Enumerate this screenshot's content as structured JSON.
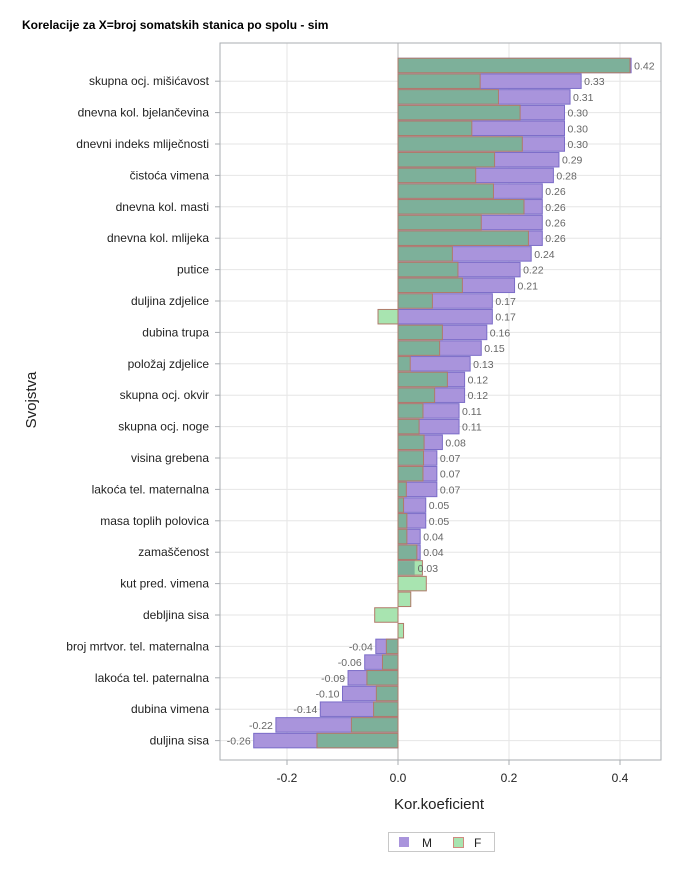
{
  "chart_data": {
    "type": "bar",
    "orientation": "horizontal",
    "title": "Korelacije za X=broj somatskih stanica po spolu - sim",
    "xlabel": "Kor.koeficient",
    "ylabel": "Svojstva",
    "xlim": [
      -0.32,
      0.47
    ],
    "xticks": [
      "-0.2",
      "0.0",
      "0.2",
      "0.4"
    ],
    "xtick_values": [
      -0.2,
      0.0,
      0.2,
      0.4
    ],
    "grid": true,
    "legend_position": "bottom",
    "categories": [
      "",
      "skupna ocj. mišićavost",
      "",
      "dnevna kol. bjelančevina",
      "",
      "dnevni indeks mliječnosti",
      "",
      "čistoća vimena",
      "",
      "dnevna kol. masti",
      "",
      "dnevna kol. mlijeka",
      "",
      "putice",
      "",
      "duljina zdjelice",
      "",
      "dubina trupa",
      "",
      "položaj zdjelice",
      "",
      "skupna ocj. okvir",
      "",
      "skupna ocj. noge",
      "",
      "visina grebena",
      "",
      "lakoća tel. maternalna",
      "",
      "masa toplih polovica",
      "",
      "zamaščenost",
      "",
      "kut pred. vimena",
      "",
      "debljina sisa",
      "",
      "broj mrtvor. tel. maternalna",
      "",
      "lakoća tel. paternalna",
      "",
      "dubina vimena",
      "",
      "duljina sisa"
    ],
    "series": [
      {
        "name": "M",
        "color": "#a994dc",
        "border": "#7b6cc8",
        "values": [
          0.42,
          0.33,
          0.31,
          0.3,
          0.3,
          0.3,
          0.29,
          0.28,
          0.26,
          0.26,
          0.26,
          0.26,
          0.24,
          0.22,
          0.21,
          0.17,
          0.17,
          0.16,
          0.15,
          0.13,
          0.12,
          0.12,
          0.11,
          0.11,
          0.08,
          0.07,
          0.07,
          0.07,
          0.05,
          0.05,
          0.04,
          0.04,
          0.03,
          null,
          null,
          null,
          null,
          -0.04,
          -0.06,
          -0.09,
          -0.1,
          -0.14,
          -0.22,
          -0.26
        ],
        "labels": [
          "0.42",
          "0.33",
          "0.31",
          "0.30",
          "0.30",
          "0.30",
          "0.29",
          "0.28",
          "0.26",
          "0.26",
          "0.26",
          "0.26",
          "0.24",
          "0.22",
          "0.21",
          "0.17",
          "0.17",
          "0.16",
          "0.15",
          "0.13",
          "0.12",
          "0.12",
          "0.11",
          "0.11",
          "0.08",
          "0.07",
          "0.07",
          "0.07",
          "0.05",
          "0.05",
          "0.04",
          "0.04",
          "0.03",
          "",
          "",
          "",
          "",
          "-0.04",
          "-0.06",
          "-0.09",
          "-0.10",
          "-0.14",
          "-0.22",
          "-0.26"
        ]
      },
      {
        "name": "F",
        "color": "#a8e4b0",
        "border": "#b07a6a",
        "values": [
          0.418,
          0.148,
          0.181,
          0.22,
          0.133,
          0.224,
          0.174,
          0.14,
          0.172,
          0.227,
          0.15,
          0.235,
          0.098,
          0.108,
          0.116,
          0.062,
          -0.036,
          0.08,
          0.075,
          0.022,
          0.089,
          0.066,
          0.045,
          0.038,
          0.047,
          0.046,
          0.045,
          0.015,
          0.01,
          0.016,
          0.016,
          0.034,
          0.044,
          0.051,
          0.023,
          -0.042,
          0.01,
          -0.021,
          -0.028,
          -0.056,
          -0.039,
          -0.044,
          -0.084,
          -0.146
        ]
      }
    ]
  }
}
